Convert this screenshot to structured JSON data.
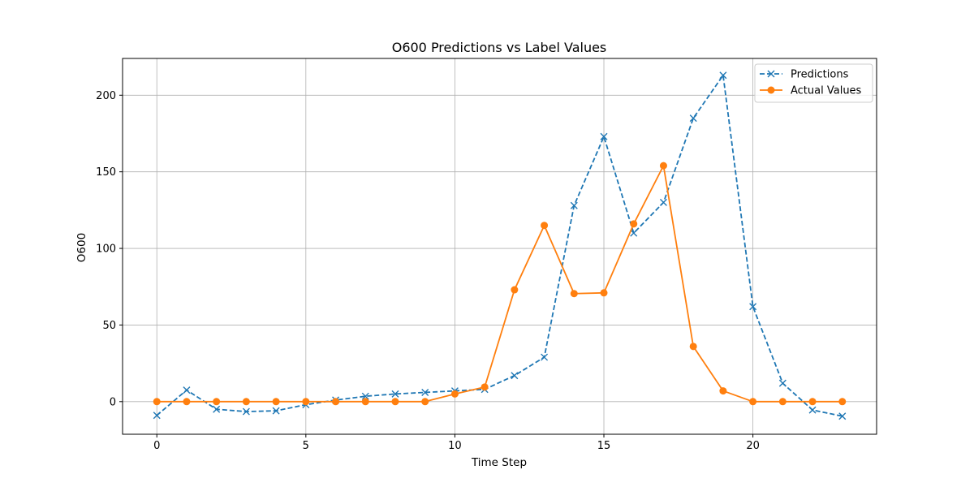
{
  "chart_data": {
    "type": "line",
    "title": "O600 Predictions vs Label Values",
    "xlabel": "Time Step",
    "ylabel": "O600",
    "xlim": [
      -1.15,
      24.15
    ],
    "ylim": [
      -21.3,
      224.0
    ],
    "xticks": [
      0,
      5,
      10,
      15,
      20
    ],
    "yticks": [
      0,
      50,
      100,
      150,
      200
    ],
    "grid": true,
    "legend_position": "top-right",
    "x": [
      0,
      1,
      2,
      3,
      4,
      5,
      6,
      7,
      8,
      9,
      10,
      11,
      12,
      13,
      14,
      15,
      16,
      17,
      18,
      19,
      20,
      21,
      22,
      23
    ],
    "series": [
      {
        "name": "Predictions",
        "color": "#1f77b4",
        "line_style": "dashed",
        "marker": "x",
        "values": [
          -9,
          7.5,
          -5,
          -6.5,
          -6,
          -2,
          1,
          3.5,
          5,
          6,
          7,
          8,
          17,
          29,
          128,
          173,
          110,
          130,
          185,
          213,
          62,
          12,
          -5.5,
          -9.5
        ]
      },
      {
        "name": "Actual Values",
        "color": "#ff7f0e",
        "line_style": "solid",
        "marker": "circle",
        "values": [
          0,
          0,
          0,
          0,
          0,
          0,
          0,
          0,
          0,
          0,
          5,
          9.5,
          73,
          115,
          70.5,
          71,
          116,
          154,
          36,
          7,
          0,
          0,
          0,
          0
        ]
      }
    ]
  }
}
